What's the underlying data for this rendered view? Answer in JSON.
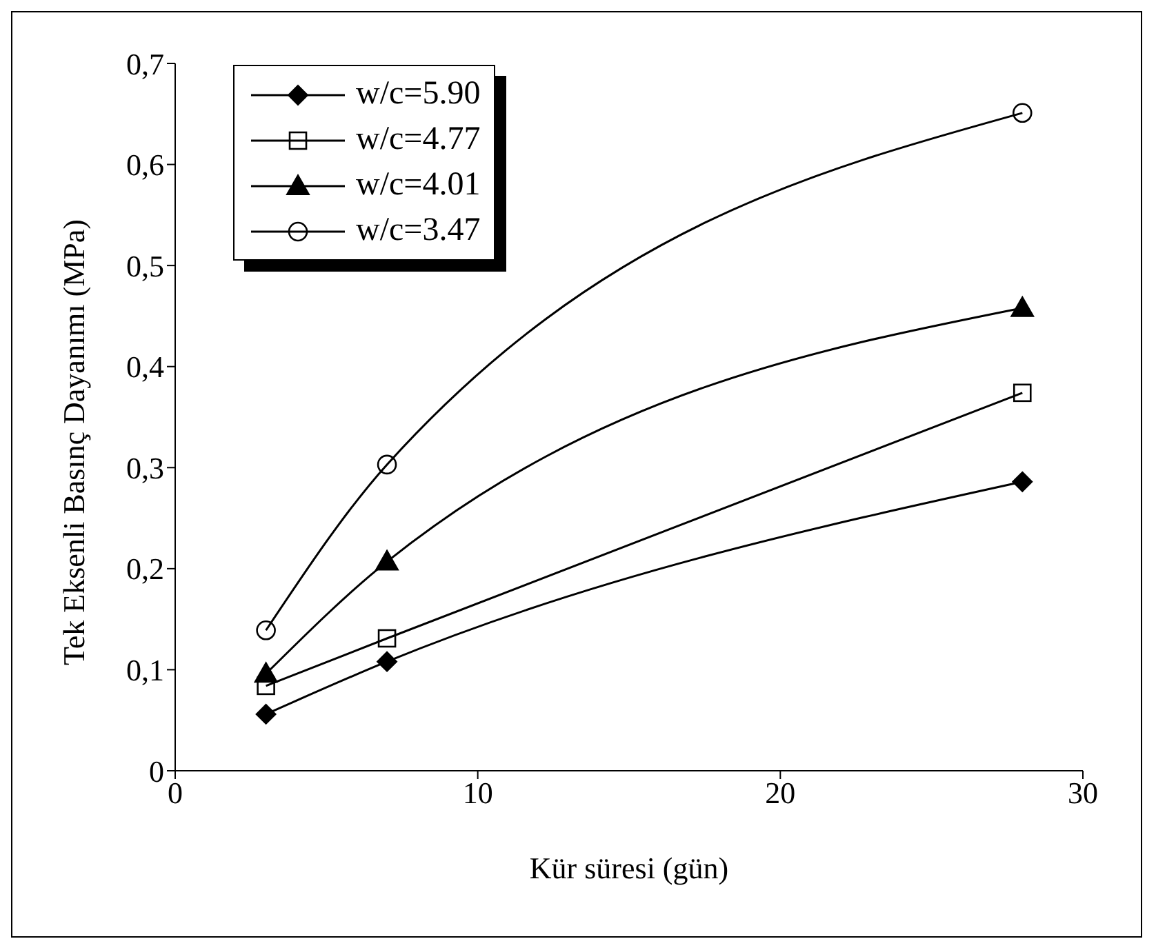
{
  "chart_data": {
    "type": "line",
    "xlabel": "Kür süresi (gün)",
    "ylabel": "Tek Eksenli Basınç Dayanımı (MPa)",
    "x": [
      3,
      7,
      28
    ],
    "series": [
      {
        "name": "w/c=5.90",
        "color": "#000000",
        "marker": "diamond",
        "values": [
          0.056,
          0.108,
          0.286
        ]
      },
      {
        "name": "w/c=4.77",
        "color": "#000000",
        "marker": "square",
        "values": [
          0.084,
          0.131,
          0.374
        ]
      },
      {
        "name": "w/c=4.01",
        "color": "#000000",
        "marker": "triangle",
        "values": [
          0.096,
          0.207,
          0.458
        ]
      },
      {
        "name": "w/c=3.47",
        "color": "#000000",
        "marker": "circle",
        "values": [
          0.139,
          0.303,
          0.651
        ]
      }
    ],
    "xlim": [
      0,
      30
    ],
    "xticks": [
      0,
      10,
      20,
      30
    ],
    "ylim": [
      0,
      0.7
    ],
    "yticks": [
      0,
      {
        "value": 0.1,
        "label": "0,1"
      },
      {
        "value": 0.2,
        "label": "0,2"
      },
      {
        "value": 0.3,
        "label": "0,3"
      },
      {
        "value": 0.4,
        "label": "0,4"
      },
      {
        "value": 0.5,
        "label": "0,5"
      },
      {
        "value": 0.6,
        "label": "0,6"
      },
      {
        "value": 0.7,
        "label": "0,7"
      }
    ],
    "grid": false,
    "legend": "top left",
    "line_style": "solid"
  }
}
